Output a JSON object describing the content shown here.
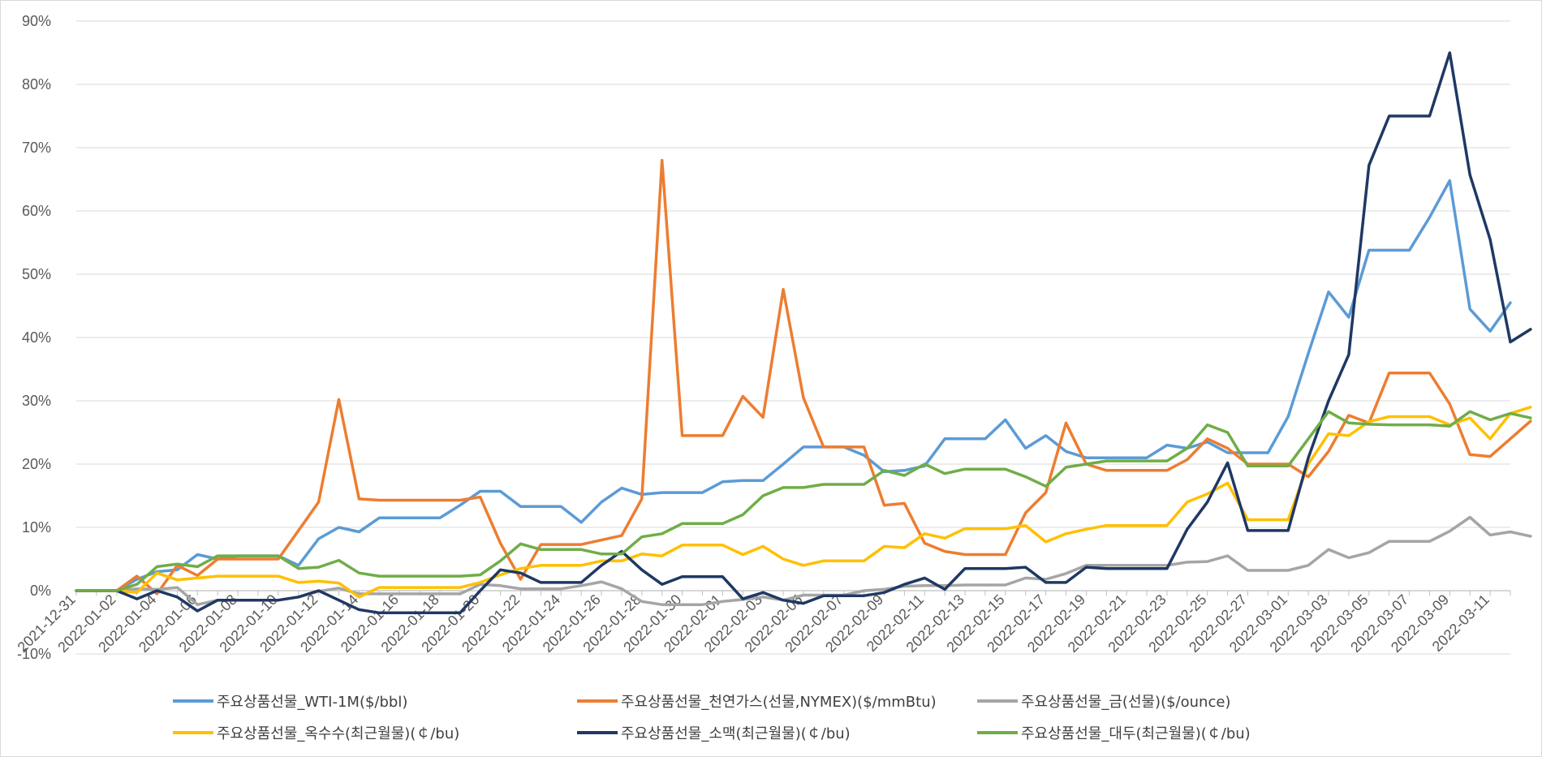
{
  "chart_data": {
    "type": "line",
    "ylim": [
      -0.1,
      0.9
    ],
    "y_ticks": [
      "90%",
      "80%",
      "70%",
      "60%",
      "50%",
      "40%",
      "30%",
      "20%",
      "10%",
      "0%",
      "-10%"
    ],
    "x_tick_labels": [
      "2021-12-31",
      "2022-01-02",
      "2022-01-04",
      "2022-01-06",
      "2022-01-08",
      "2022-01-10",
      "2022-01-12",
      "2022-01-14",
      "2022-01-16",
      "2022-01-18",
      "2022-01-20",
      "2022-01-22",
      "2022-01-24",
      "2022-01-26",
      "2022-01-28",
      "2022-01-30",
      "2022-02-01",
      "2022-02-03",
      "2022-02-05",
      "2022-02-07",
      "2022-02-09",
      "2022-02-11",
      "2022-02-13",
      "2022-02-15",
      "2022-02-17",
      "2022-02-19",
      "2022-02-21",
      "2022-02-23",
      "2022-02-25",
      "2022-02-27",
      "2022-03-01",
      "2022-03-03",
      "2022-03-05",
      "2022-03-07",
      "2022-03-09",
      "2022-03-11"
    ],
    "grid": "horizontal",
    "legend_position": "bottom",
    "series": [
      {
        "name": "주요상품선물_WTI-1M($/bbl)",
        "color": "#5B9BD5",
        "values": [
          0,
          0,
          0,
          0.018,
          0.03,
          0.033,
          0.057,
          0.05,
          0.055,
          0.055,
          0.055,
          0.04,
          0.082,
          0.1,
          0.093,
          0.115,
          0.115,
          0.115,
          0.115,
          0.135,
          0.157,
          0.157,
          0.133,
          0.133,
          0.133,
          0.108,
          0.14,
          0.162,
          0.152,
          0.155,
          0.155,
          0.155,
          0.172,
          0.174,
          0.174,
          0.2,
          0.227,
          0.227,
          0.227,
          0.214,
          0.188,
          0.19,
          0.197,
          0.24,
          0.24,
          0.24,
          0.27,
          0.225,
          0.245,
          0.22,
          0.21,
          0.21,
          0.21,
          0.21,
          0.23,
          0.225,
          0.235,
          0.218,
          0.218,
          0.218,
          0.275,
          0.375,
          0.472,
          0.432,
          0.538,
          0.538,
          0.538,
          0.59,
          0.648,
          0.445,
          0.41,
          0.455
        ]
      },
      {
        "name": "주요상품선물_천연가스(선물,NYMEX)($/mmBtu)",
        "color": "#ED7D31",
        "values": [
          0,
          0,
          0,
          0.023,
          -0.005,
          0.04,
          0.024,
          0.05,
          0.05,
          0.05,
          0.05,
          0.095,
          0.14,
          0.302,
          0.145,
          0.143,
          0.143,
          0.143,
          0.143,
          0.143,
          0.148,
          0.075,
          0.018,
          0.073,
          0.073,
          0.073,
          0.08,
          0.087,
          0.145,
          0.68,
          0.245,
          0.245,
          0.245,
          0.307,
          0.274,
          0.476,
          0.305,
          0.227,
          0.227,
          0.227,
          0.135,
          0.138,
          0.075,
          0.062,
          0.057,
          0.057,
          0.057,
          0.123,
          0.155,
          0.265,
          0.2,
          0.19,
          0.19,
          0.19,
          0.19,
          0.207,
          0.24,
          0.225,
          0.2,
          0.2,
          0.2,
          0.18,
          0.22,
          0.277,
          0.265,
          0.344,
          0.344,
          0.344,
          0.295,
          0.215,
          0.212,
          0.24,
          0.268
        ]
      },
      {
        "name": "주요상품선물_금(선물)($/ounce)",
        "color": "#A5A5A5",
        "values": [
          0,
          0,
          0,
          0.003,
          0.002,
          0.005,
          -0.022,
          -0.015,
          -0.015,
          -0.015,
          -0.015,
          -0.01,
          -0.001,
          0.004,
          -0.005,
          -0.005,
          -0.005,
          -0.005,
          -0.005,
          -0.005,
          0.01,
          0.008,
          0.003,
          0.003,
          0.003,
          0.008,
          0.014,
          0.003,
          -0.017,
          -0.022,
          -0.022,
          -0.022,
          -0.017,
          -0.014,
          -0.01,
          -0.015,
          -0.007,
          -0.007,
          -0.007,
          0,
          0.002,
          0.007,
          0.008,
          0.008,
          0.009,
          0.009,
          0.009,
          0.02,
          0.018,
          0.027,
          0.04,
          0.04,
          0.04,
          0.04,
          0.04,
          0.045,
          0.046,
          0.055,
          0.032,
          0.032,
          0.032,
          0.04,
          0.065,
          0.052,
          0.06,
          0.078,
          0.078,
          0.078,
          0.094,
          0.116,
          0.088,
          0.093,
          0.086
        ]
      },
      {
        "name": "주요상품선물_옥수수(최근월물)(￠/bu)",
        "color": "#FFC000",
        "values": [
          0,
          0,
          0,
          -0.003,
          0.028,
          0.017,
          0.02,
          0.023,
          0.023,
          0.023,
          0.023,
          0.013,
          0.015,
          0.012,
          -0.01,
          0.005,
          0.005,
          0.005,
          0.005,
          0.005,
          0.013,
          0.025,
          0.035,
          0.04,
          0.04,
          0.04,
          0.047,
          0.047,
          0.058,
          0.055,
          0.072,
          0.072,
          0.072,
          0.057,
          0.07,
          0.05,
          0.04,
          0.047,
          0.047,
          0.047,
          0.07,
          0.068,
          0.09,
          0.083,
          0.098,
          0.098,
          0.098,
          0.103,
          0.077,
          0.09,
          0.097,
          0.103,
          0.103,
          0.103,
          0.103,
          0.14,
          0.153,
          0.17,
          0.112,
          0.112,
          0.112,
          0.2,
          0.248,
          0.245,
          0.267,
          0.275,
          0.275,
          0.275,
          0.262,
          0.273,
          0.24,
          0.28,
          0.29
        ]
      },
      {
        "name": "주요상품선물_소맥(최근월물)(￠/bu)",
        "color": "#1F3864",
        "values": [
          0,
          0,
          0,
          -0.013,
          0,
          -0.01,
          -0.032,
          -0.015,
          -0.015,
          -0.015,
          -0.015,
          -0.01,
          0,
          -0.015,
          -0.03,
          -0.035,
          -0.035,
          -0.035,
          -0.035,
          -0.035,
          0,
          0.033,
          0.028,
          0.013,
          0.013,
          0.013,
          0.04,
          0.062,
          0.033,
          0.01,
          0.022,
          0.022,
          0.022,
          -0.013,
          -0.003,
          -0.015,
          -0.02,
          -0.008,
          -0.008,
          -0.008,
          -0.003,
          0.01,
          0.02,
          0.002,
          0.035,
          0.035,
          0.035,
          0.037,
          0.013,
          0.013,
          0.037,
          0.035,
          0.035,
          0.035,
          0.035,
          0.097,
          0.14,
          0.202,
          0.095,
          0.095,
          0.095,
          0.21,
          0.3,
          0.373,
          0.672,
          0.75,
          0.75,
          0.75,
          0.85,
          0.657,
          0.555,
          0.393,
          0.413
        ]
      },
      {
        "name": "주요상품선물_대두(최근월물)(￠/bu)",
        "color": "#70AD47",
        "values": [
          0,
          0,
          0,
          0.01,
          0.038,
          0.042,
          0.038,
          0.055,
          0.055,
          0.055,
          0.055,
          0.035,
          0.037,
          0.048,
          0.028,
          0.023,
          0.023,
          0.023,
          0.023,
          0.023,
          0.025,
          0.047,
          0.074,
          0.065,
          0.065,
          0.065,
          0.058,
          0.058,
          0.085,
          0.09,
          0.106,
          0.106,
          0.106,
          0.12,
          0.15,
          0.163,
          0.163,
          0.168,
          0.168,
          0.168,
          0.19,
          0.182,
          0.2,
          0.185,
          0.192,
          0.192,
          0.192,
          0.18,
          0.165,
          0.195,
          0.2,
          0.205,
          0.205,
          0.205,
          0.205,
          0.225,
          0.262,
          0.25,
          0.197,
          0.197,
          0.197,
          0.24,
          0.283,
          0.265,
          0.263,
          0.262,
          0.262,
          0.262,
          0.26,
          0.283,
          0.27,
          0.28,
          0.273
        ]
      }
    ]
  }
}
